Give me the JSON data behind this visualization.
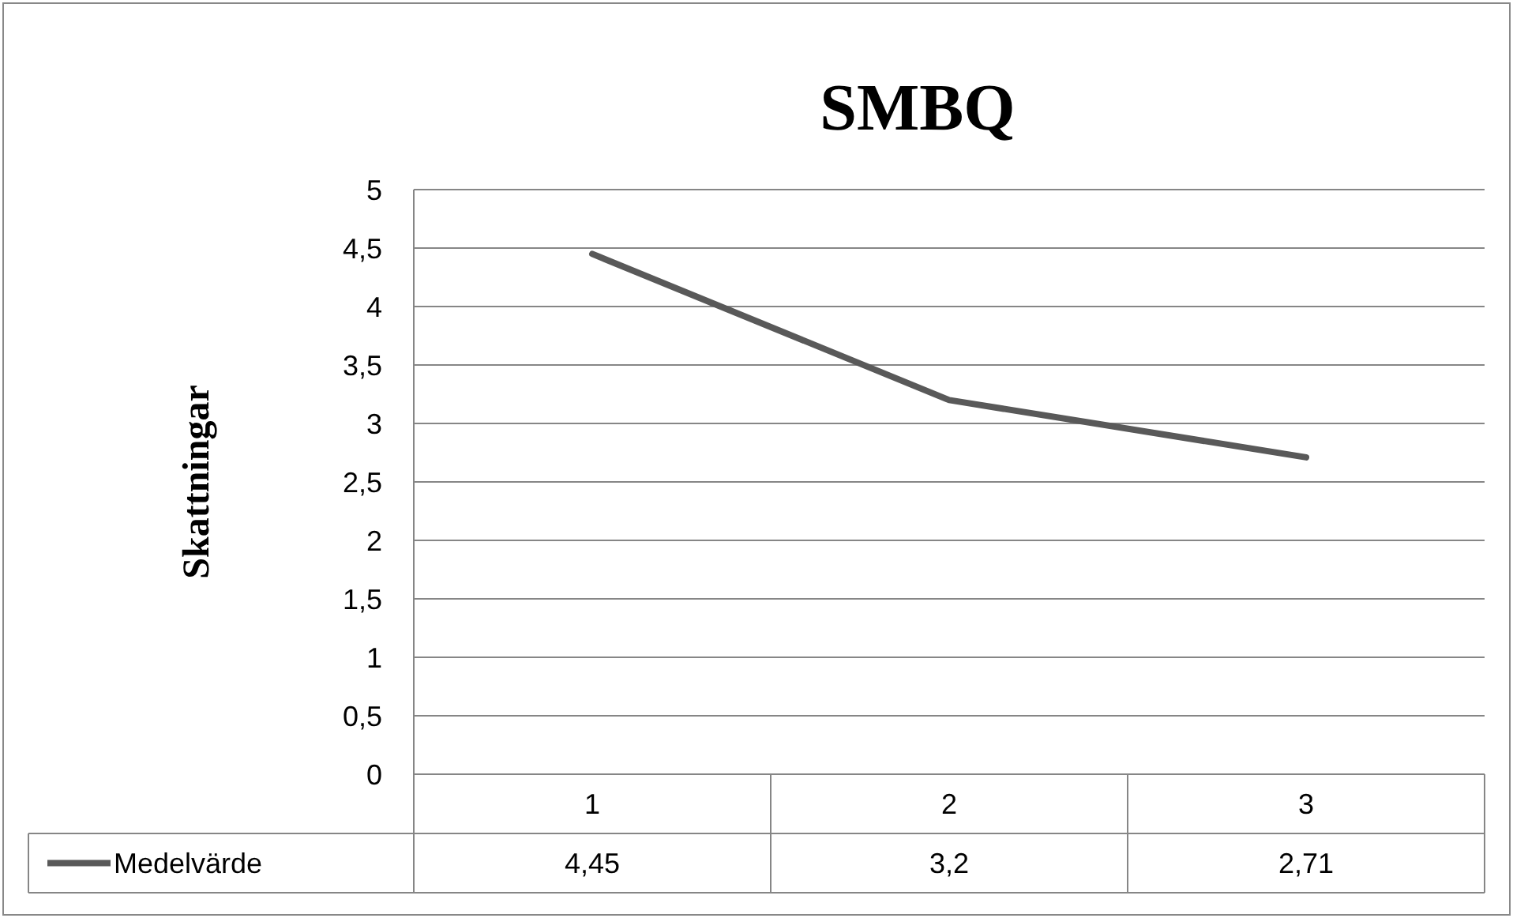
{
  "chart_data": {
    "type": "line",
    "title": "SMBQ",
    "ylabel": "Skattningar",
    "categories": [
      "1",
      "2",
      "3"
    ],
    "series": [
      {
        "name": "Medelvärde",
        "color": "#595959",
        "values": [
          4.45,
          3.2,
          2.71
        ],
        "value_labels": [
          "4,45",
          "3,2",
          "2,71"
        ]
      }
    ],
    "ylim": [
      0,
      5
    ],
    "yticks": [
      0,
      {
        "value": 0.5,
        "label": "0,5"
      },
      1,
      {
        "value": 1.5,
        "label": "1,5"
      },
      2,
      {
        "value": 2.5,
        "label": "2,5"
      },
      3,
      {
        "value": 3.5,
        "label": "3,5"
      },
      4,
      {
        "value": 4.5,
        "label": "4,5"
      },
      5
    ],
    "grid": "y",
    "legend": "bottom",
    "marker": "none",
    "line_style": "solid"
  }
}
